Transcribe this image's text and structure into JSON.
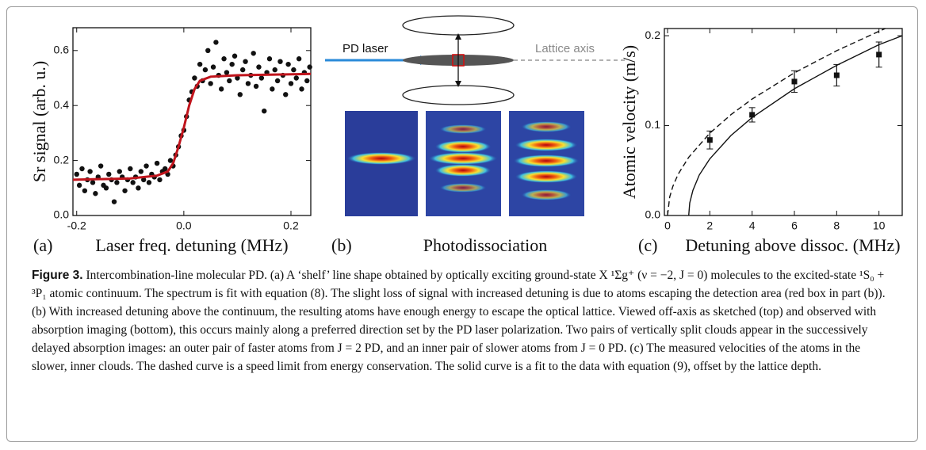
{
  "chart_data": [
    {
      "type": "scatter",
      "panel": "(a)",
      "xlabel": "Laser freq. detuning (MHz)",
      "ylabel": "Sr signal (arb. u.)",
      "xlim": [
        -0.207,
        0.237
      ],
      "ylim": [
        0,
        0.683
      ],
      "xticks": [
        {
          "value": -0.2,
          "label": "-0.2"
        },
        {
          "value": 0,
          "label": "0.0"
        },
        {
          "value": 0.2,
          "label": "0.2"
        }
      ],
      "yticks": [
        {
          "value": 0,
          "label": "0.0"
        },
        {
          "value": 0.2,
          "label": "0.2"
        },
        {
          "value": 0.4,
          "label": "0.4"
        },
        {
          "value": 0.6,
          "label": "0.6"
        }
      ],
      "points": {
        "color": "#111111",
        "x": [
          -0.2,
          -0.195,
          -0.19,
          -0.185,
          -0.18,
          -0.175,
          -0.17,
          -0.165,
          -0.16,
          -0.155,
          -0.15,
          -0.145,
          -0.14,
          -0.135,
          -0.13,
          -0.125,
          -0.12,
          -0.115,
          -0.11,
          -0.105,
          -0.1,
          -0.095,
          -0.09,
          -0.085,
          -0.08,
          -0.075,
          -0.07,
          -0.065,
          -0.06,
          -0.055,
          -0.05,
          -0.045,
          -0.04,
          -0.035,
          -0.03,
          -0.025,
          -0.02,
          -0.015,
          -0.01,
          -0.005,
          0,
          0.005,
          0.01,
          0.015,
          0.02,
          0.025,
          0.03,
          0.035,
          0.04,
          0.045,
          0.05,
          0.055,
          0.06,
          0.065,
          0.07,
          0.075,
          0.08,
          0.085,
          0.09,
          0.095,
          0.1,
          0.105,
          0.11,
          0.115,
          0.12,
          0.125,
          0.13,
          0.135,
          0.14,
          0.145,
          0.15,
          0.155,
          0.16,
          0.165,
          0.17,
          0.175,
          0.18,
          0.185,
          0.19,
          0.195,
          0.2,
          0.205,
          0.21,
          0.215,
          0.22,
          0.225,
          0.23,
          0.235
        ],
        "values": [
          0.15,
          0.11,
          0.17,
          0.09,
          0.13,
          0.16,
          0.12,
          0.08,
          0.14,
          0.18,
          0.11,
          0.1,
          0.15,
          0.13,
          0.05,
          0.12,
          0.16,
          0.14,
          0.09,
          0.13,
          0.17,
          0.12,
          0.14,
          0.1,
          0.16,
          0.13,
          0.18,
          0.12,
          0.15,
          0.14,
          0.19,
          0.13,
          0.16,
          0.17,
          0.15,
          0.2,
          0.18,
          0.22,
          0.25,
          0.29,
          0.31,
          0.36,
          0.42,
          0.45,
          0.5,
          0.47,
          0.55,
          0.49,
          0.53,
          0.6,
          0.48,
          0.54,
          0.63,
          0.51,
          0.46,
          0.57,
          0.52,
          0.49,
          0.55,
          0.58,
          0.5,
          0.44,
          0.53,
          0.56,
          0.48,
          0.51,
          0.59,
          0.47,
          0.54,
          0.5,
          0.38,
          0.52,
          0.57,
          0.46,
          0.53,
          0.49,
          0.56,
          0.51,
          0.44,
          0.55,
          0.48,
          0.53,
          0.5,
          0.57,
          0.46,
          0.52,
          0.49,
          0.54
        ]
      },
      "fit": {
        "color": "#c0141c",
        "x": [
          -0.207,
          -0.1,
          -0.05,
          -0.03,
          -0.02,
          -0.01,
          0,
          0.01,
          0.02,
          0.03,
          0.05,
          0.1,
          0.237
        ],
        "values": [
          0.13,
          0.135,
          0.145,
          0.16,
          0.19,
          0.25,
          0.32,
          0.4,
          0.46,
          0.49,
          0.505,
          0.51,
          0.515
        ]
      }
    },
    {
      "type": "errorbar",
      "panel": "(c)",
      "xlabel": "Detuning above dissoc. (MHz)",
      "ylabel": "Atomic velocity (m/s)",
      "xlim": [
        -0.15,
        11.1
      ],
      "ylim": [
        0,
        0.208
      ],
      "xticks": [
        0,
        2,
        4,
        6,
        8,
        10
      ],
      "yticks": [
        {
          "value": 0,
          "label": "0.0"
        },
        {
          "value": 0.1,
          "label": "0.1"
        },
        {
          "value": 0.2,
          "label": "0.2"
        }
      ],
      "x": [
        2,
        4,
        6,
        8,
        10
      ],
      "values": [
        0.084,
        0.112,
        0.149,
        0.156,
        0.179
      ],
      "errors": [
        0.01,
        0.008,
        0.012,
        0.012,
        0.014
      ],
      "color": "#111111",
      "curves": [
        {
          "style": "dashed",
          "color": "#111111",
          "x": [
            0,
            0.1,
            0.25,
            0.5,
            1,
            2,
            3,
            4,
            6,
            8,
            10,
            10.3
          ],
          "values": [
            0,
            0.0205,
            0.0324,
            0.0458,
            0.0648,
            0.0916,
            0.1122,
            0.1296,
            0.1587,
            0.1833,
            0.2049,
            0.208
          ]
        },
        {
          "style": "solid",
          "color": "#111111",
          "x": [
            1,
            1.05,
            1.2,
            1.5,
            2,
            3,
            4,
            6,
            8,
            10,
            11.1
          ],
          "values": [
            0,
            0.014,
            0.028,
            0.045,
            0.063,
            0.089,
            0.109,
            0.141,
            0.167,
            0.19,
            0.2
          ]
        }
      ]
    }
  ],
  "panel_b": {
    "label": "(b)",
    "title": "Photodissociation",
    "pd_laser": "PD laser",
    "lattice_axis": "Lattice axis"
  },
  "caption": {
    "label": "Figure 3.",
    "text": "Intercombination-line molecular PD. (a) A ‘shelf’ line shape obtained by optically exciting ground-state X ¹Σg⁺ (ν = −2, J = 0) molecules to the excited-state ¹S₀ + ³P₁ atomic continuum. The spectrum is fit with equation (8). The slight loss of signal with increased detuning is due to atoms escaping the detection area (red box in part (b)). (b) With increased detuning above the continuum, the resulting atoms have enough energy to escape the optical lattice. Viewed off-axis as sketched (top) and observed with absorption imaging (bottom), this occurs mainly along a preferred direction set by the PD laser polarization. Two pairs of vertically split clouds appear in the successively delayed absorption images: an outer pair of faster atoms from J = 2 PD, and an inner pair of slower atoms from J = 0 PD. (c) The measured velocities of the atoms in the slower, inner clouds. The dashed curve is a speed limit from energy conservation. The solid curve is a fit to the data with equation (9), offset by the lattice depth."
  }
}
